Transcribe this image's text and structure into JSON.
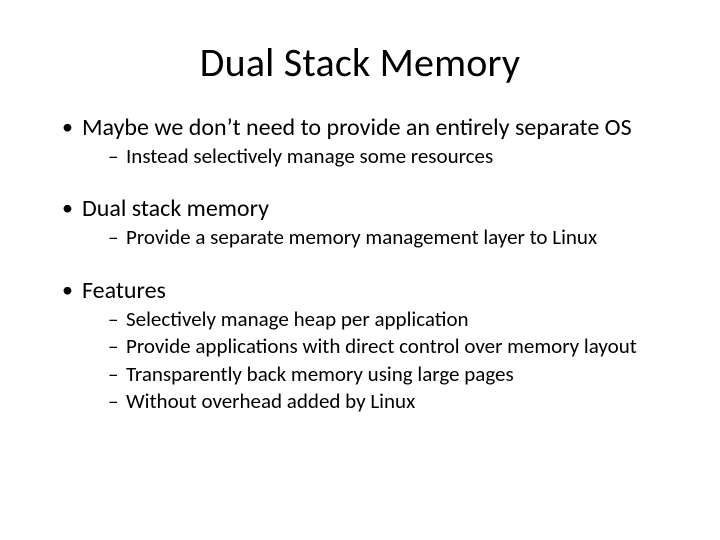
{
  "slide": {
    "title": "Dual Stack Memory",
    "title_fontsize": 40,
    "background_color": "#ffffff",
    "text_color": "#000000",
    "bullet_fontsize": 24,
    "subbullet_fontsize": 21,
    "bullets": [
      {
        "text": "Maybe we don’t need to provide an entirely separate OS",
        "sub": [
          "Instead selectively manage some resources"
        ]
      },
      {
        "text": "Dual stack memory",
        "sub": [
          "Provide a separate memory management layer to Linux"
        ]
      },
      {
        "text": "Features",
        "sub": [
          "Selectively manage heap per application",
          "Provide applications with direct control over memory layout",
          "Transparently back memory using large pages",
          "Without overhead added by Linux"
        ]
      }
    ]
  }
}
